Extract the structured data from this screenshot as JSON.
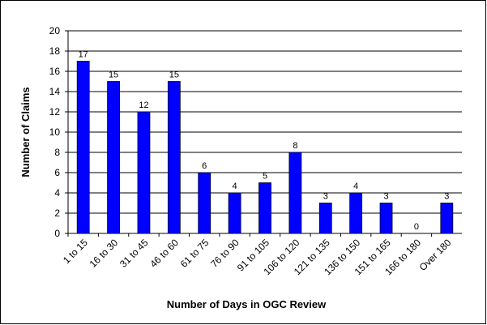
{
  "chart_data": {
    "type": "bar",
    "x_label": "Number of Days in OGC Review",
    "y_label": "Number of Claims",
    "categories": [
      "1 to 15",
      "16 to 30",
      "31 to 45",
      "46 to 60",
      "61 to 75",
      "76 to 90",
      "91 to 105",
      "106 to 120",
      "121 to 135",
      "136 to 150",
      "151 to 165",
      "166 to 180",
      "Over 180"
    ],
    "values": [
      17,
      15,
      12,
      15,
      6,
      4,
      5,
      8,
      3,
      4,
      3,
      0,
      3
    ],
    "color": "#0000ff",
    "ylim": [
      0,
      20
    ],
    "yticks": [
      0,
      2,
      4,
      6,
      8,
      10,
      12,
      14,
      16,
      18,
      20
    ],
    "grid": true
  }
}
